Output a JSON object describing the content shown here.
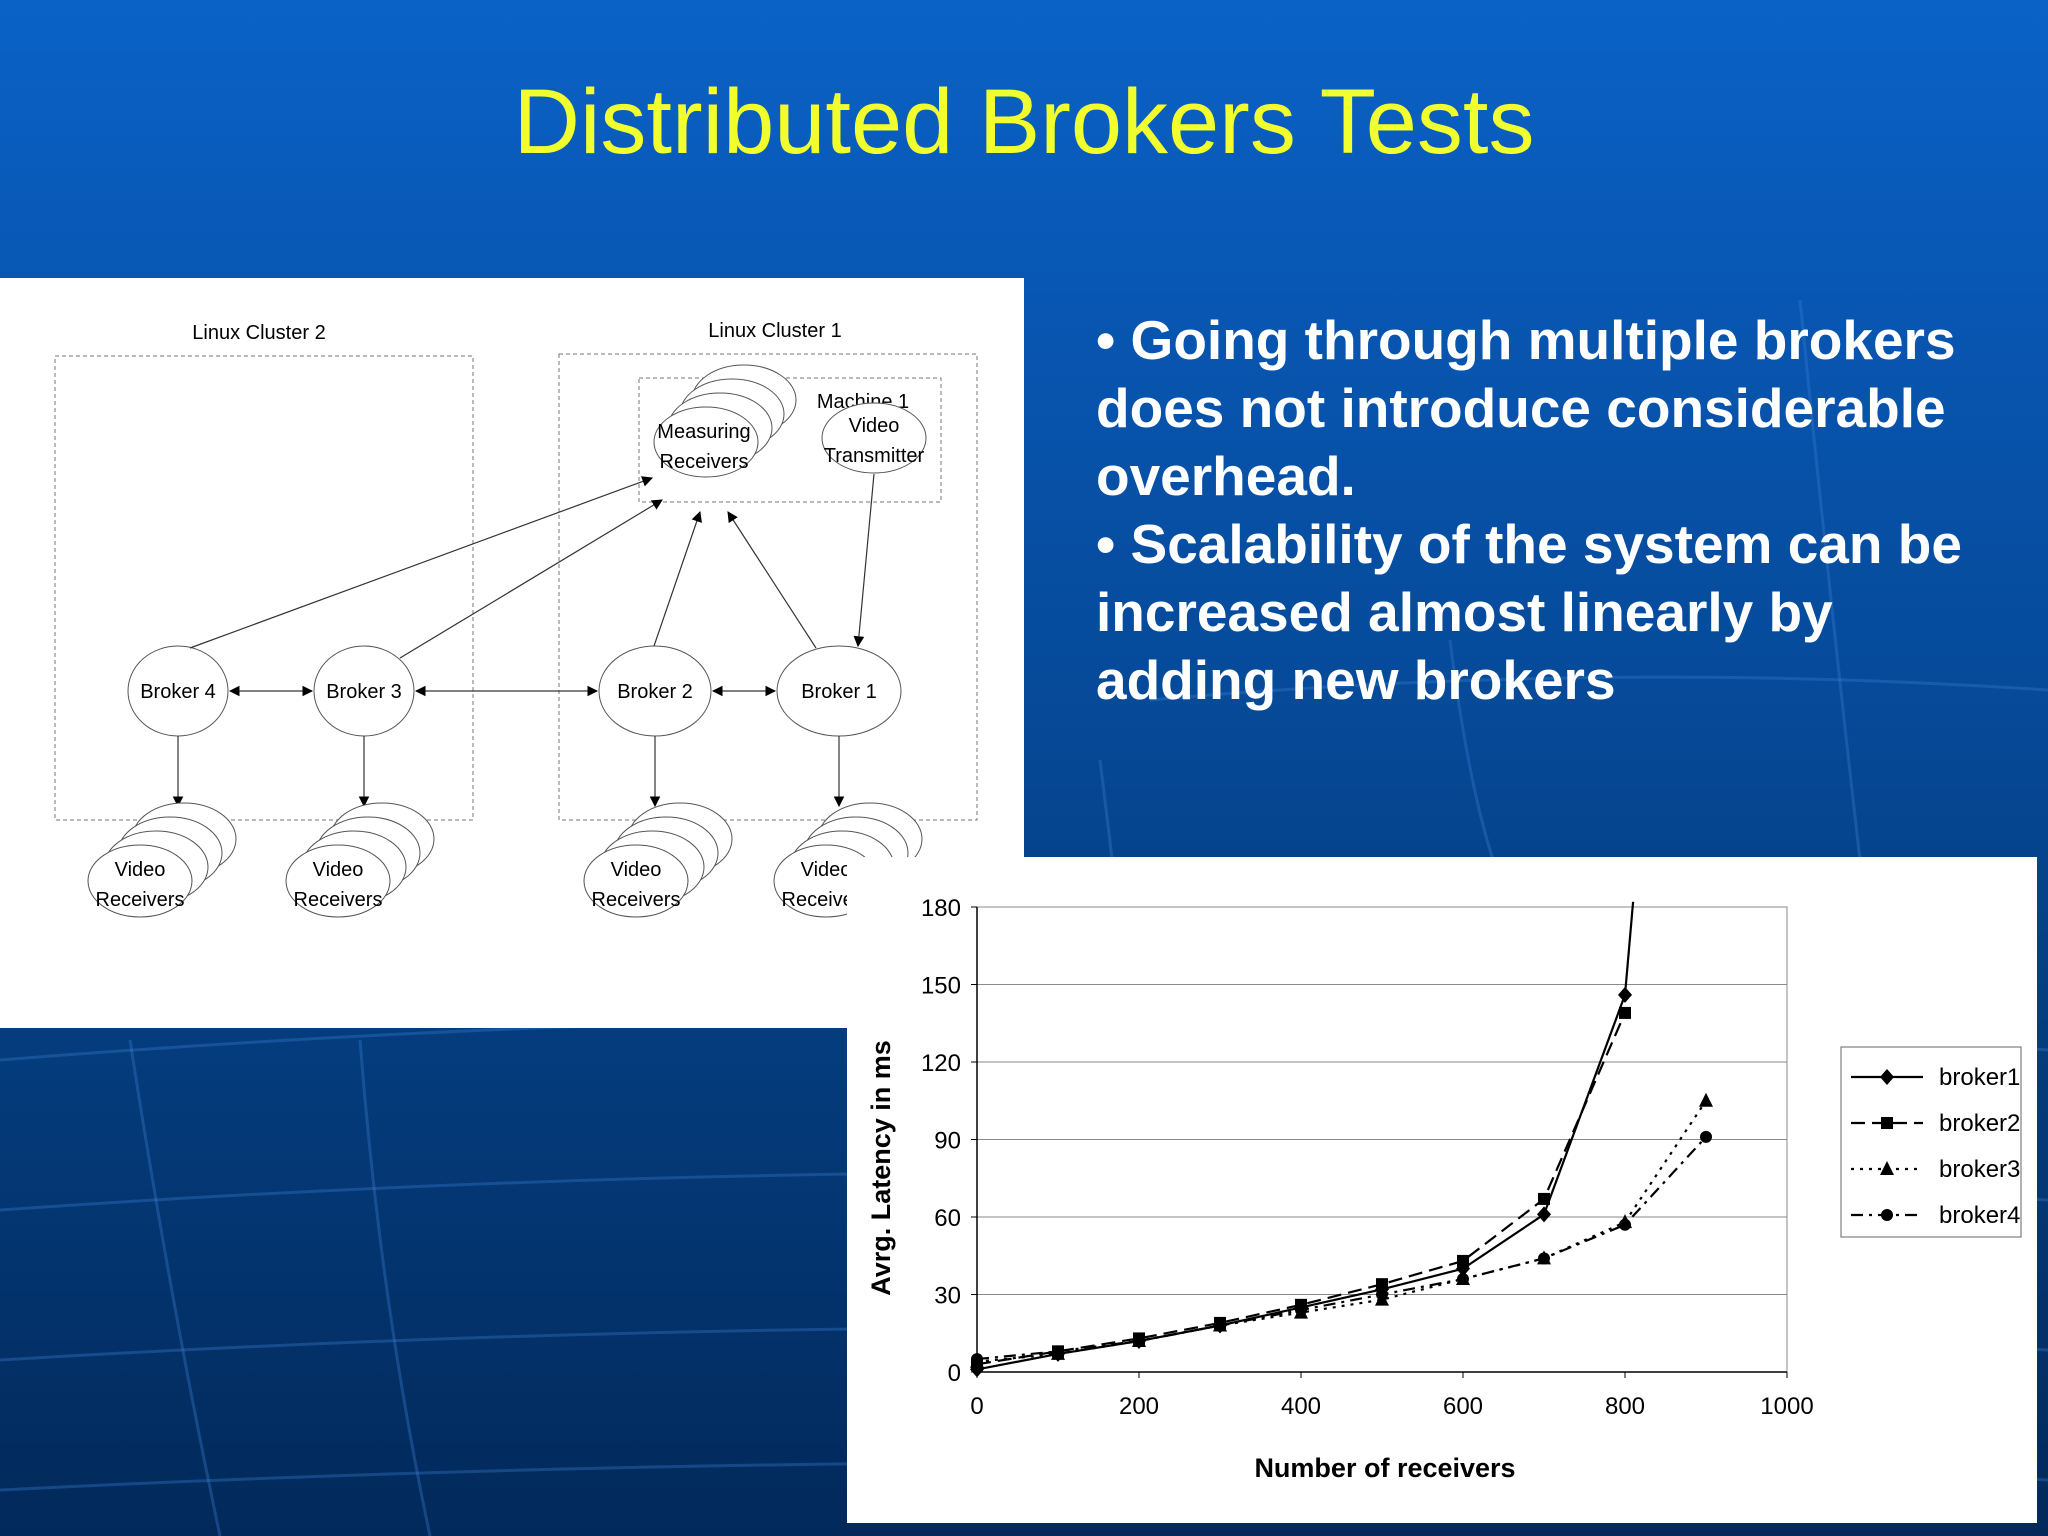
{
  "slide": {
    "title": "Distributed Brokers Tests",
    "bullets": [
      "• Going through multiple brokers does not introduce considerable overhead.",
      "• Scalability of the system can be increased almost linearly by adding new brokers"
    ],
    "colors": {
      "title": "#f2ff2e",
      "background": "#0856b2",
      "text": "#ffffff"
    }
  },
  "diagram": {
    "clusters": {
      "cluster2": "Linux Cluster 2",
      "cluster1": "Linux Cluster 1"
    },
    "machine": "Machine 1",
    "measuring_receivers": [
      "Measuring",
      "Receivers"
    ],
    "video_transmitter": [
      "Video",
      "Transmitter"
    ],
    "brokers": [
      "Broker 4",
      "Broker 3",
      "Broker 2",
      "Broker 1"
    ],
    "video_receivers": [
      "Video",
      "Receivers"
    ]
  },
  "chart_data": {
    "type": "line",
    "title": "",
    "xlabel": "Number of receivers",
    "ylabel": "Avrg. Latency in ms",
    "xlim": [
      0,
      1000
    ],
    "ylim": [
      0,
      180
    ],
    "xticks": [
      0,
      200,
      400,
      600,
      800,
      1000
    ],
    "yticks": [
      0,
      30,
      60,
      90,
      120,
      150,
      180
    ],
    "grid": "horizontal",
    "legend": "right",
    "series": [
      {
        "name": "broker1",
        "marker": "diamond",
        "dash": "solid",
        "x": [
          0,
          100,
          200,
          300,
          400,
          500,
          600,
          700,
          800,
          810
        ],
        "y": [
          1,
          7,
          12,
          18,
          25,
          32,
          40,
          61,
          146,
          182
        ]
      },
      {
        "name": "broker2",
        "marker": "square",
        "dash": "dashed",
        "x": [
          0,
          100,
          200,
          300,
          400,
          500,
          600,
          700,
          800
        ],
        "y": [
          3,
          8,
          13,
          19,
          26,
          34,
          43,
          67,
          139
        ]
      },
      {
        "name": "broker3",
        "marker": "triangle",
        "dash": "dotted",
        "x": [
          0,
          100,
          200,
          300,
          400,
          500,
          600,
          700,
          800,
          900
        ],
        "y": [
          4,
          7,
          12,
          18,
          23,
          28,
          36,
          44,
          58,
          105
        ]
      },
      {
        "name": "broker4",
        "marker": "circle",
        "dash": "dashdot",
        "x": [
          0,
          100,
          200,
          300,
          400,
          500,
          600,
          700,
          800,
          900
        ],
        "y": [
          5,
          8,
          12,
          18,
          24,
          30,
          36,
          44,
          57,
          91
        ]
      }
    ]
  }
}
